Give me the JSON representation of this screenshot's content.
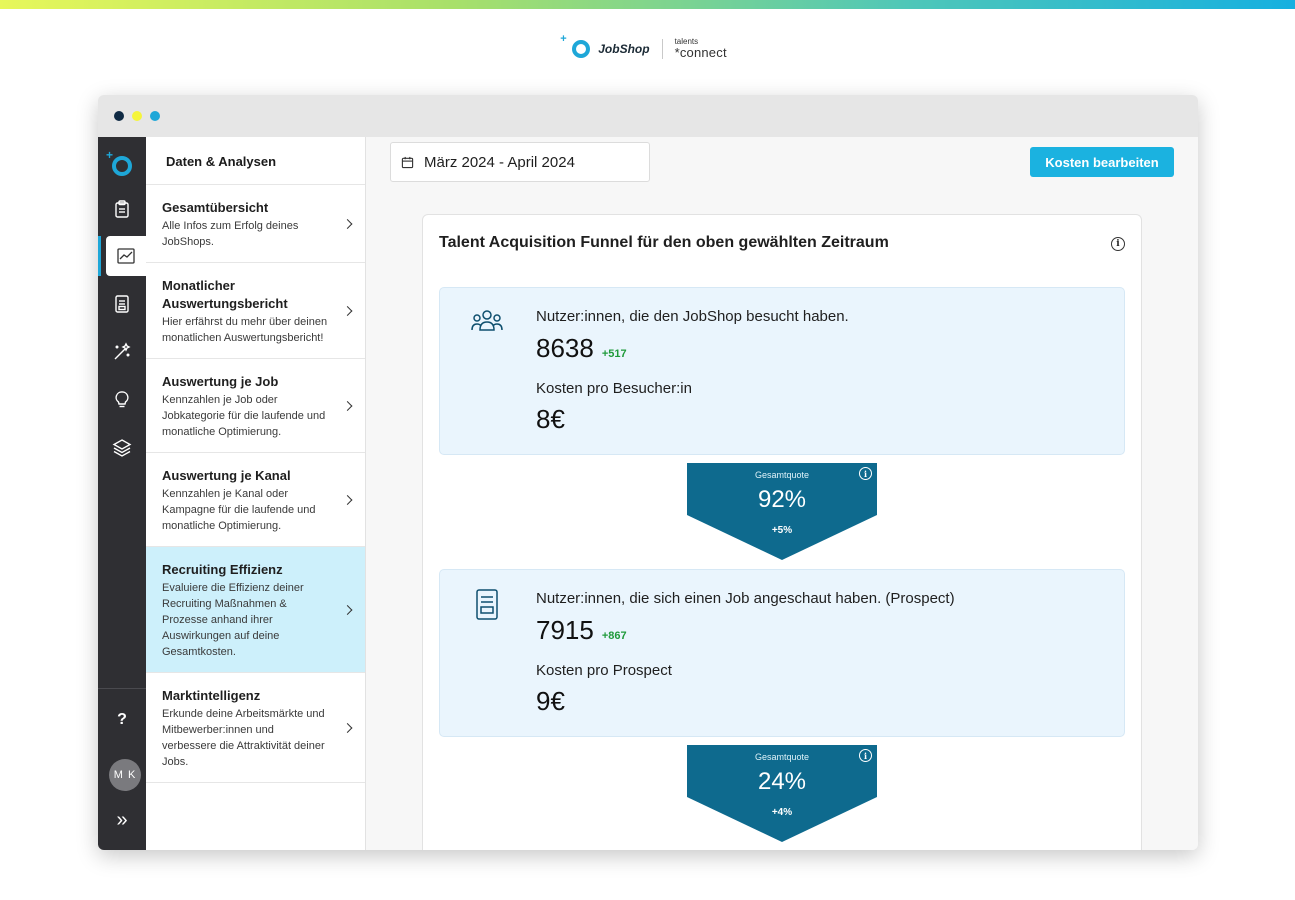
{
  "brand": {
    "jobshop": "JobShop",
    "tc_small": "talents",
    "tc_big": "*connect"
  },
  "window": {
    "traffic_lights": [
      "#0f2a44",
      "#f5f53a",
      "#1ea7d8"
    ]
  },
  "rail": {
    "icons": [
      "clipboard-icon",
      "chart-trend-icon",
      "document-icon",
      "magic-wand-icon",
      "lightbulb-icon",
      "layers-icon"
    ],
    "help": "?",
    "avatar": "M K",
    "expand": "»"
  },
  "subnav": {
    "header": "Daten & Analysen",
    "items": [
      {
        "title": "Gesamtübersicht",
        "desc": "Alle Infos zum Erfolg deines JobShops."
      },
      {
        "title": "Monatlicher Auswertungsbericht",
        "desc": "Hier erfährst du mehr über deinen monatlichen Auswertungsbericht!"
      },
      {
        "title": "Auswertung je Job",
        "desc": "Kennzahlen je Job oder Jobkategorie für die laufende und monatliche Optimierung."
      },
      {
        "title": "Auswertung je Kanal",
        "desc": "Kennzahlen je Kanal oder Kampagne für die laufende und monatliche Optimierung."
      },
      {
        "title": "Recruiting Effizienz",
        "desc": "Evaluiere die Effizienz deiner Recruiting Maßnahmen & Prozesse anhand ihrer Auswirkungen auf deine Gesamtkosten."
      },
      {
        "title": "Marktintelligenz",
        "desc": "Erkunde deine Arbeitsmärkte und Mitbewerber:innen und verbessere die Attraktivität deiner Jobs."
      }
    ]
  },
  "main": {
    "date_range": "März 2024 - April 2024",
    "cost_button": "Kosten bearbeiten",
    "card_title": "Talent Acquisition Funnel für den oben gewählten Zeitraum",
    "stages": [
      {
        "label": "Nutzer:innen, die den JobShop besucht haben.",
        "value": "8638",
        "delta": "+517",
        "cost_label": "Kosten pro Besucher:in",
        "cost_value": "8€"
      },
      {
        "label": "Nutzer:innen, die sich einen Job angeschaut haben. (Prospect)",
        "value": "7915",
        "delta": "+867",
        "cost_label": "Kosten pro Prospect",
        "cost_value": "9€"
      }
    ],
    "funnels": [
      {
        "label": "Gesamtquote",
        "value": "92%",
        "delta": "+5%"
      },
      {
        "label": "Gesamtquote",
        "value": "24%",
        "delta": "+4%"
      }
    ]
  },
  "colors": {
    "accent": "#1bb2e0",
    "funnel": "#0e6a8e",
    "active_nav": "#cdf0fb",
    "delta_green": "#1f9a3a"
  }
}
